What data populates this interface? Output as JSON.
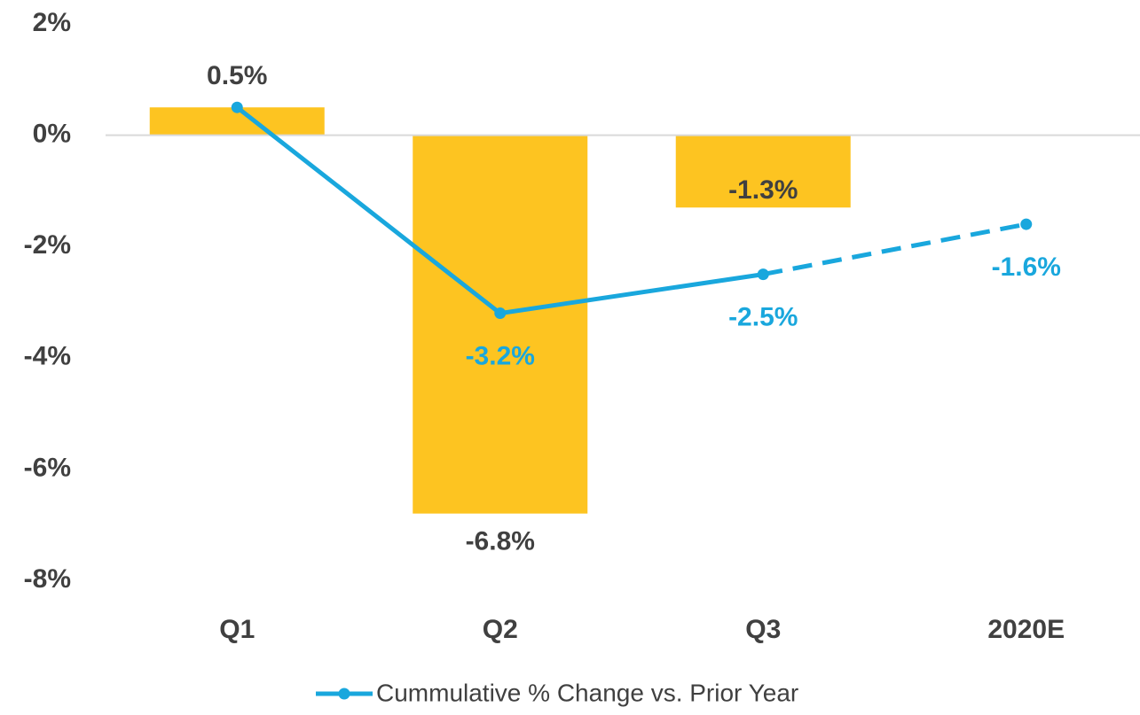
{
  "chart_data": {
    "type": "bar+line",
    "categories": [
      "Q1",
      "Q2",
      "Q3",
      "2020E"
    ],
    "series": [
      {
        "type": "bar",
        "color": "#fdc421",
        "values": [
          0.5,
          -6.8,
          -1.3,
          null
        ],
        "value_labels": [
          "0.5%",
          "-6.8%",
          "-1.3%",
          null
        ]
      },
      {
        "type": "line",
        "name": "Cummulative % Change vs. Prior Year",
        "color": "#19a7dd",
        "values": [
          0.5,
          -3.2,
          -2.5,
          -1.6
        ],
        "value_labels": [
          null,
          "-3.2%",
          "-2.5%",
          "-1.6%"
        ],
        "dashed_from": 2
      }
    ],
    "ylim": [
      -8,
      2
    ],
    "yticks": [
      {
        "value": -8,
        "label": "-8%"
      },
      {
        "value": -6,
        "label": "-6%"
      },
      {
        "value": -4,
        "label": "-4%"
      },
      {
        "value": -2,
        "label": "-2%"
      },
      {
        "value": 0,
        "label": "0%"
      },
      {
        "value": 2,
        "label": "2%"
      }
    ],
    "grid": false,
    "legend": "bottom"
  }
}
